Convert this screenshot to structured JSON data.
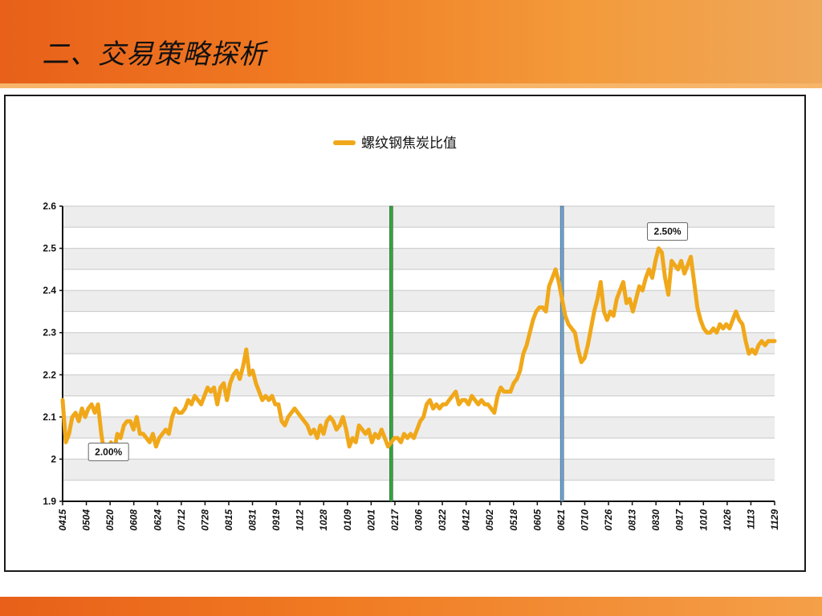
{
  "slide": {
    "title": "二、交易策略探析"
  },
  "colors": {
    "band_orange": "#f07a22",
    "series_line": "#f0a81a",
    "marker_green": "#2ea83a",
    "marker_blue": "#6aa6d6"
  },
  "chart_data": {
    "type": "line",
    "title": "",
    "xlabel": "",
    "ylabel": "",
    "ylim": [
      1.9,
      2.6
    ],
    "yticks": [
      "1.9",
      "2",
      "2.1",
      "2.2",
      "2.3",
      "2.4",
      "2.5",
      "2.6"
    ],
    "grid": true,
    "legend_position": "top-center",
    "x_tick_labels": [
      "0415",
      "0504",
      "0520",
      "0608",
      "0624",
      "0712",
      "0728",
      "0815",
      "0831",
      "0919",
      "1012",
      "1028",
      "0109",
      "0201",
      "0217",
      "0306",
      "0322",
      "0412",
      "0502",
      "0518",
      "0605",
      "0621",
      "0710",
      "0726",
      "0813",
      "0830",
      "0917",
      "1010",
      "1026",
      "1113",
      "1129"
    ],
    "series": [
      {
        "name": "螺纹钢焦炭比值",
        "values": [
          2.14,
          2.04,
          2.06,
          2.1,
          2.11,
          2.09,
          2.12,
          2.1,
          2.12,
          2.13,
          2.11,
          2.13,
          2.06,
          2.01,
          2.0,
          2.04,
          2.02,
          2.06,
          2.05,
          2.08,
          2.09,
          2.09,
          2.07,
          2.1,
          2.06,
          2.06,
          2.05,
          2.04,
          2.06,
          2.03,
          2.05,
          2.06,
          2.07,
          2.06,
          2.1,
          2.12,
          2.11,
          2.11,
          2.12,
          2.14,
          2.13,
          2.15,
          2.14,
          2.13,
          2.15,
          2.17,
          2.16,
          2.17,
          2.13,
          2.17,
          2.18,
          2.14,
          2.18,
          2.2,
          2.21,
          2.19,
          2.22,
          2.26,
          2.2,
          2.21,
          2.18,
          2.16,
          2.14,
          2.15,
          2.14,
          2.15,
          2.13,
          2.13,
          2.09,
          2.08,
          2.1,
          2.11,
          2.12,
          2.11,
          2.1,
          2.09,
          2.08,
          2.06,
          2.07,
          2.05,
          2.08,
          2.06,
          2.09,
          2.1,
          2.09,
          2.07,
          2.08,
          2.1,
          2.07,
          2.03,
          2.05,
          2.04,
          2.08,
          2.07,
          2.06,
          2.07,
          2.04,
          2.06,
          2.05,
          2.07,
          2.05,
          2.03,
          2.04,
          2.05,
          2.05,
          2.04,
          2.06,
          2.05,
          2.06,
          2.05,
          2.07,
          2.09,
          2.1,
          2.13,
          2.14,
          2.12,
          2.13,
          2.12,
          2.13,
          2.13,
          2.14,
          2.15,
          2.16,
          2.13,
          2.14,
          2.14,
          2.13,
          2.15,
          2.14,
          2.13,
          2.14,
          2.13,
          2.13,
          2.12,
          2.11,
          2.15,
          2.17,
          2.16,
          2.16,
          2.16,
          2.18,
          2.19,
          2.21,
          2.25,
          2.27,
          2.3,
          2.33,
          2.35,
          2.36,
          2.36,
          2.35,
          2.41,
          2.43,
          2.45,
          2.42,
          2.38,
          2.34,
          2.32,
          2.31,
          2.3,
          2.26,
          2.23,
          2.24,
          2.27,
          2.31,
          2.35,
          2.38,
          2.42,
          2.35,
          2.33,
          2.35,
          2.34,
          2.38,
          2.4,
          2.42,
          2.37,
          2.38,
          2.35,
          2.38,
          2.41,
          2.4,
          2.43,
          2.45,
          2.43,
          2.47,
          2.5,
          2.49,
          2.43,
          2.39,
          2.47,
          2.46,
          2.45,
          2.47,
          2.44,
          2.46,
          2.48,
          2.42,
          2.36,
          2.33,
          2.31,
          2.3,
          2.3,
          2.31,
          2.3,
          2.32,
          2.31,
          2.32,
          2.31,
          2.33,
          2.35,
          2.33,
          2.32,
          2.28,
          2.25,
          2.26,
          2.25,
          2.27,
          2.28,
          2.27,
          2.28,
          2.28,
          2.28
        ]
      }
    ],
    "annotations": [
      {
        "text": "2.00%",
        "x_index": 14,
        "value": 2.0
      },
      {
        "text": "2.50%",
        "x_index": 187,
        "value": 2.5
      }
    ],
    "vertical_markers": [
      {
        "name": "green",
        "x_index": 102
      },
      {
        "name": "blue",
        "x_index": 155
      }
    ]
  }
}
